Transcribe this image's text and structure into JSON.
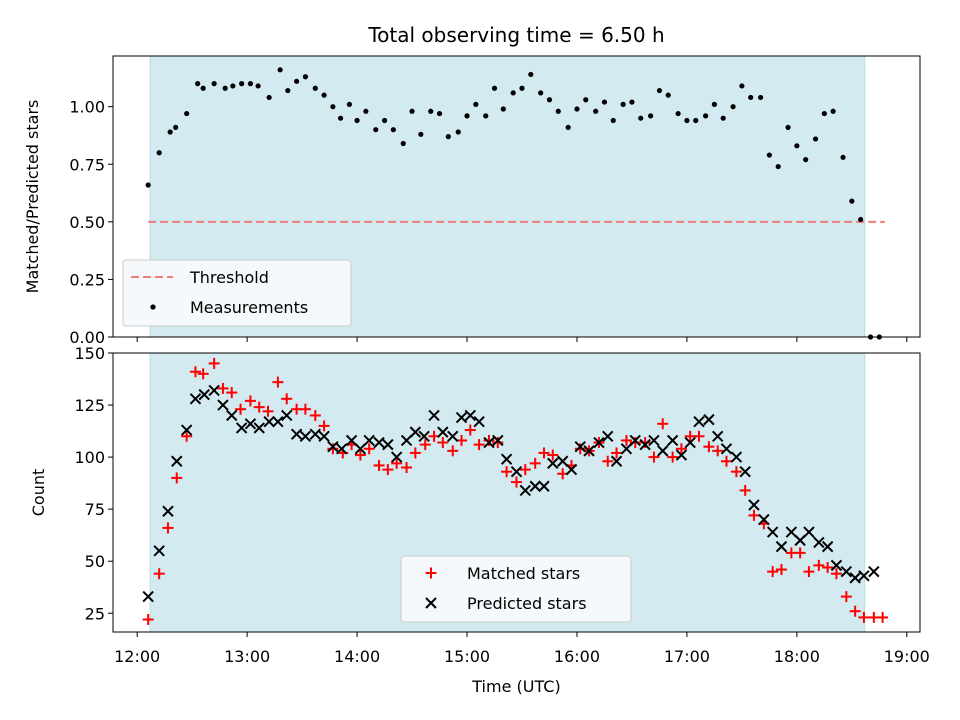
{
  "colors": {
    "shade": "#d3eaf0",
    "shade_edge": "#b7dbe4",
    "threshold": "#f07c7c",
    "measurement": "#000000",
    "matched": "#ff0000",
    "predicted": "#000000",
    "legend_bg": "#f5f9fb"
  },
  "chart_data": [
    {
      "type": "scatter",
      "title": "Total observing time = 6.50 h",
      "xlabel": "",
      "ylabel": "Matched/Predicted stars",
      "xlim": [
        11.78,
        19.12
      ],
      "ylim": [
        0.0,
        1.22
      ],
      "yticks": [
        0.0,
        0.25,
        0.5,
        0.75,
        1.0
      ],
      "yticklabels": [
        "0.00",
        "0.25",
        "0.50",
        "0.75",
        "1.00"
      ],
      "shaded_span": [
        12.117,
        18.617
      ],
      "threshold": {
        "name": "Threshold",
        "y": 0.5,
        "x_range": [
          12.1,
          18.8
        ]
      },
      "legend_loc": "lower-left",
      "series": [
        {
          "name": "Measurements",
          "points": [
            [
              12.1,
              0.66
            ],
            [
              12.2,
              0.8
            ],
            [
              12.3,
              0.89
            ],
            [
              12.35,
              0.91
            ],
            [
              12.45,
              0.97
            ],
            [
              12.55,
              1.1
            ],
            [
              12.6,
              1.08
            ],
            [
              12.7,
              1.1
            ],
            [
              12.8,
              1.08
            ],
            [
              12.87,
              1.09
            ],
            [
              12.95,
              1.1
            ],
            [
              13.03,
              1.1
            ],
            [
              13.1,
              1.09
            ],
            [
              13.2,
              1.04
            ],
            [
              13.3,
              1.16
            ],
            [
              13.37,
              1.07
            ],
            [
              13.45,
              1.11
            ],
            [
              13.53,
              1.13
            ],
            [
              13.62,
              1.08
            ],
            [
              13.7,
              1.05
            ],
            [
              13.78,
              1.0
            ],
            [
              13.85,
              0.95
            ],
            [
              13.93,
              1.01
            ],
            [
              14.0,
              0.94
            ],
            [
              14.08,
              0.98
            ],
            [
              14.17,
              0.9
            ],
            [
              14.25,
              0.94
            ],
            [
              14.33,
              0.9
            ],
            [
              14.42,
              0.84
            ],
            [
              14.5,
              0.98
            ],
            [
              14.58,
              0.88
            ],
            [
              14.67,
              0.98
            ],
            [
              14.75,
              0.97
            ],
            [
              14.83,
              0.87
            ],
            [
              14.92,
              0.89
            ],
            [
              15.0,
              0.96
            ],
            [
              15.08,
              1.01
            ],
            [
              15.17,
              0.96
            ],
            [
              15.25,
              1.08
            ],
            [
              15.33,
              0.99
            ],
            [
              15.42,
              1.06
            ],
            [
              15.5,
              1.08
            ],
            [
              15.58,
              1.14
            ],
            [
              15.67,
              1.06
            ],
            [
              15.75,
              1.03
            ],
            [
              15.83,
              0.98
            ],
            [
              15.92,
              0.91
            ],
            [
              16.0,
              0.99
            ],
            [
              16.08,
              1.03
            ],
            [
              16.17,
              0.98
            ],
            [
              16.25,
              1.02
            ],
            [
              16.33,
              0.94
            ],
            [
              16.42,
              1.01
            ],
            [
              16.5,
              1.02
            ],
            [
              16.58,
              0.95
            ],
            [
              16.67,
              0.96
            ],
            [
              16.75,
              1.07
            ],
            [
              16.83,
              1.05
            ],
            [
              16.92,
              0.97
            ],
            [
              17.0,
              0.94
            ],
            [
              17.08,
              0.94
            ],
            [
              17.17,
              0.96
            ],
            [
              17.25,
              1.01
            ],
            [
              17.33,
              0.95
            ],
            [
              17.42,
              1.0
            ],
            [
              17.5,
              1.09
            ],
            [
              17.58,
              1.04
            ],
            [
              17.67,
              1.04
            ],
            [
              17.75,
              0.79
            ],
            [
              17.83,
              0.74
            ],
            [
              17.92,
              0.91
            ],
            [
              18.0,
              0.83
            ],
            [
              18.08,
              0.77
            ],
            [
              18.17,
              0.86
            ],
            [
              18.25,
              0.97
            ],
            [
              18.33,
              0.98
            ],
            [
              18.42,
              0.78
            ],
            [
              18.5,
              0.59
            ],
            [
              18.58,
              0.51
            ],
            [
              18.67,
              0.0
            ],
            [
              18.75,
              0.0
            ]
          ]
        }
      ]
    },
    {
      "type": "scatter",
      "title": "",
      "xlabel": "Time (UTC)",
      "ylabel": "Count",
      "xlim": [
        11.78,
        19.12
      ],
      "ylim": [
        16.0,
        150.0
      ],
      "yticks": [
        25,
        50,
        75,
        100,
        125,
        150
      ],
      "yticklabels": [
        "25",
        "50",
        "75",
        "100",
        "125",
        "150"
      ],
      "xticks": [
        12,
        13,
        14,
        15,
        16,
        17,
        18,
        19
      ],
      "xticklabels": [
        "12:00",
        "13:00",
        "14:00",
        "15:00",
        "16:00",
        "17:00",
        "18:00",
        "19:00"
      ],
      "shaded_span": [
        12.117,
        18.617
      ],
      "legend_loc": "lower-center",
      "series": [
        {
          "name": "Matched stars",
          "marker": "plus",
          "points": [
            [
              12.1,
              22
            ],
            [
              12.2,
              44
            ],
            [
              12.28,
              66
            ],
            [
              12.36,
              90
            ],
            [
              12.45,
              110
            ],
            [
              12.53,
              141
            ],
            [
              12.6,
              140
            ],
            [
              12.7,
              145
            ],
            [
              12.78,
              133
            ],
            [
              12.86,
              131
            ],
            [
              12.94,
              123
            ],
            [
              13.03,
              127
            ],
            [
              13.11,
              124
            ],
            [
              13.19,
              122
            ],
            [
              13.28,
              136
            ],
            [
              13.36,
              128
            ],
            [
              13.45,
              123
            ],
            [
              13.53,
              123
            ],
            [
              13.62,
              120
            ],
            [
              13.7,
              115
            ],
            [
              13.78,
              104
            ],
            [
              13.87,
              102
            ],
            [
              13.95,
              106
            ],
            [
              14.03,
              101
            ],
            [
              14.11,
              104
            ],
            [
              14.2,
              96
            ],
            [
              14.28,
              94
            ],
            [
              14.36,
              97
            ],
            [
              14.45,
              95
            ],
            [
              14.53,
              102
            ],
            [
              14.62,
              106
            ],
            [
              14.7,
              110
            ],
            [
              14.78,
              107
            ],
            [
              14.87,
              103
            ],
            [
              14.95,
              108
            ],
            [
              15.03,
              113
            ],
            [
              15.11,
              106
            ],
            [
              15.2,
              108
            ],
            [
              15.28,
              107
            ],
            [
              15.36,
              93
            ],
            [
              15.45,
              88
            ],
            [
              15.53,
              94
            ],
            [
              15.62,
              97
            ],
            [
              15.7,
              102
            ],
            [
              15.78,
              101
            ],
            [
              15.87,
              92
            ],
            [
              15.95,
              96
            ],
            [
              16.03,
              104
            ],
            [
              16.11,
              103
            ],
            [
              16.2,
              107
            ],
            [
              16.28,
              98
            ],
            [
              16.36,
              102
            ],
            [
              16.45,
              108
            ],
            [
              16.53,
              107
            ],
            [
              16.62,
              107
            ],
            [
              16.7,
              100
            ],
            [
              16.78,
              116
            ],
            [
              16.87,
              100
            ],
            [
              16.95,
              104
            ],
            [
              17.03,
              110
            ],
            [
              17.11,
              110
            ],
            [
              17.2,
              105
            ],
            [
              17.28,
              103
            ],
            [
              17.36,
              98
            ],
            [
              17.45,
              93
            ],
            [
              17.53,
              84
            ],
            [
              17.61,
              72
            ],
            [
              17.7,
              68
            ],
            [
              17.78,
              45
            ],
            [
              17.86,
              46
            ],
            [
              17.95,
              54
            ],
            [
              18.03,
              54
            ],
            [
              18.11,
              45
            ],
            [
              18.2,
              48
            ],
            [
              18.28,
              47
            ],
            [
              18.36,
              44
            ],
            [
              18.45,
              33
            ],
            [
              18.53,
              26
            ],
            [
              18.61,
              23
            ],
            [
              18.7,
              23
            ],
            [
              18.78,
              23
            ]
          ]
        },
        {
          "name": "Predicted stars",
          "marker": "x",
          "points": [
            [
              12.1,
              33
            ],
            [
              12.2,
              55
            ],
            [
              12.28,
              74
            ],
            [
              12.36,
              98
            ],
            [
              12.45,
              113
            ],
            [
              12.53,
              128
            ],
            [
              12.61,
              130
            ],
            [
              12.7,
              132
            ],
            [
              12.78,
              125
            ],
            [
              12.86,
              120
            ],
            [
              12.95,
              114
            ],
            [
              13.03,
              116
            ],
            [
              13.11,
              114
            ],
            [
              13.2,
              117
            ],
            [
              13.28,
              117
            ],
            [
              13.36,
              120
            ],
            [
              13.45,
              111
            ],
            [
              13.53,
              110
            ],
            [
              13.62,
              111
            ],
            [
              13.7,
              110
            ],
            [
              13.78,
              105
            ],
            [
              13.86,
              104
            ],
            [
              13.95,
              108
            ],
            [
              14.03,
              104
            ],
            [
              14.11,
              108
            ],
            [
              14.2,
              107
            ],
            [
              14.28,
              106
            ],
            [
              14.36,
              100
            ],
            [
              14.45,
              108
            ],
            [
              14.53,
              112
            ],
            [
              14.61,
              110
            ],
            [
              14.7,
              120
            ],
            [
              14.78,
              112
            ],
            [
              14.87,
              110
            ],
            [
              14.95,
              119
            ],
            [
              15.03,
              120
            ],
            [
              15.11,
              117
            ],
            [
              15.2,
              107
            ],
            [
              15.28,
              108
            ],
            [
              15.36,
              99
            ],
            [
              15.45,
              93
            ],
            [
              15.53,
              84
            ],
            [
              15.62,
              86
            ],
            [
              15.7,
              86
            ],
            [
              15.78,
              97
            ],
            [
              15.87,
              98
            ],
            [
              15.95,
              94
            ],
            [
              16.03,
              105
            ],
            [
              16.11,
              103
            ],
            [
              16.2,
              107
            ],
            [
              16.28,
              110
            ],
            [
              16.36,
              98
            ],
            [
              16.45,
              104
            ],
            [
              16.53,
              108
            ],
            [
              16.62,
              106
            ],
            [
              16.7,
              108
            ],
            [
              16.78,
              103
            ],
            [
              16.87,
              108
            ],
            [
              16.95,
              101
            ],
            [
              17.03,
              107
            ],
            [
              17.11,
              117
            ],
            [
              17.2,
              118
            ],
            [
              17.28,
              110
            ],
            [
              17.36,
              104
            ],
            [
              17.45,
              100
            ],
            [
              17.53,
              93
            ],
            [
              17.61,
              77
            ],
            [
              17.7,
              70
            ],
            [
              17.78,
              64
            ],
            [
              17.86,
              57
            ],
            [
              17.95,
              64
            ],
            [
              18.03,
              60
            ],
            [
              18.11,
              64
            ],
            [
              18.2,
              59
            ],
            [
              18.28,
              57
            ],
            [
              18.36,
              48
            ],
            [
              18.45,
              45
            ],
            [
              18.53,
              42
            ],
            [
              18.61,
              43
            ],
            [
              18.7,
              45
            ]
          ]
        }
      ]
    }
  ]
}
